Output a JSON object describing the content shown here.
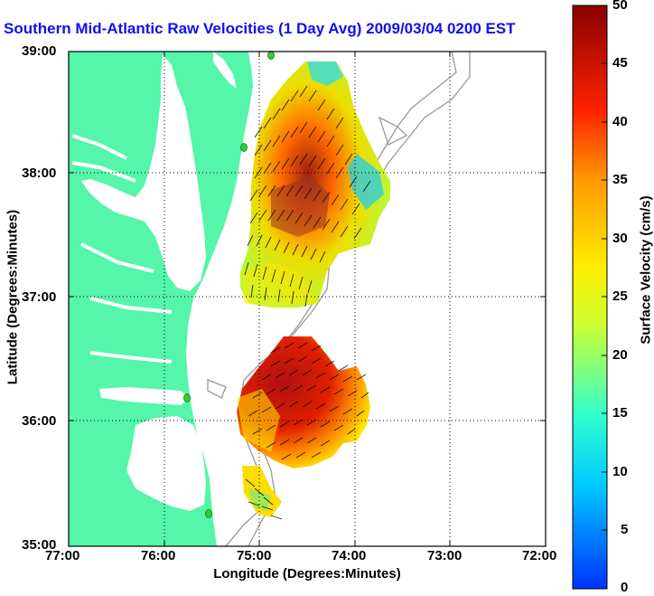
{
  "title": "Southern Mid-Atlantic Raw Velocities (1 Day Avg) 2009/03/04 0200 EST",
  "axes": {
    "xlabel": "Longitude (Degrees:Minutes)",
    "ylabel": "Latitude (Degrees:Minutes)",
    "x_ticks": [
      "77:00",
      "76:00",
      "75:00",
      "74:00",
      "73:00",
      "72:00"
    ],
    "y_ticks": [
      "39:00",
      "38:00",
      "37:00",
      "36:00",
      "35:00"
    ]
  },
  "colorbar": {
    "label": "Surface Velocity (cm/s)",
    "ticks": [
      "50",
      "45",
      "40",
      "35",
      "30",
      "25",
      "20",
      "15",
      "10",
      "5",
      "0"
    ],
    "range": [
      0,
      50
    ]
  },
  "colors": {
    "land": "#55f5aa",
    "title": "#1010ee",
    "station": "#33cc33",
    "bathymetry": "#999999",
    "grid": "#000000"
  }
}
